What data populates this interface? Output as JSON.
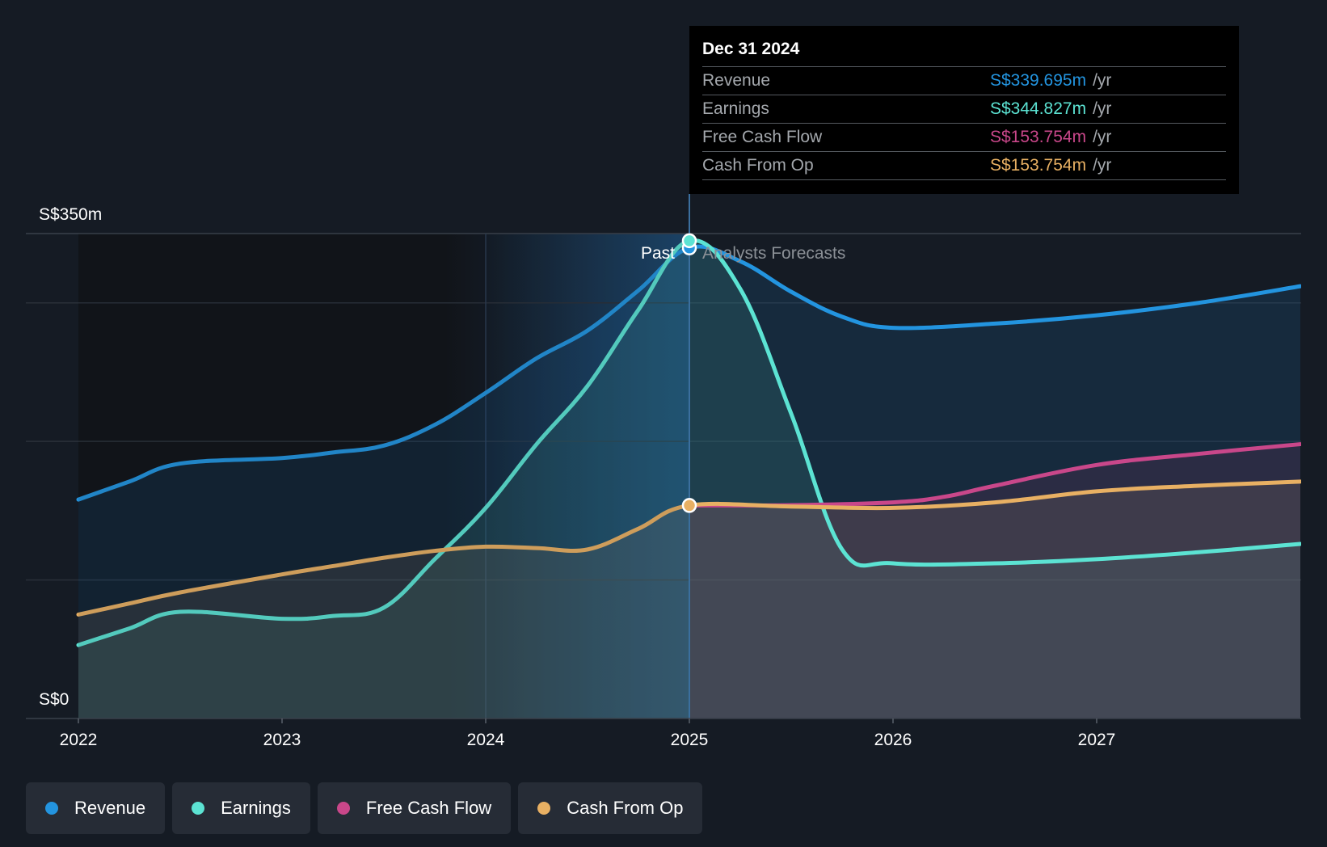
{
  "chart_data": {
    "type": "line",
    "x_label_ticks": [
      "2022",
      "2023",
      "2024",
      "2025",
      "2026",
      "2027"
    ],
    "y_axis": {
      "max_label": "S$350m",
      "min_label": "S$0",
      "ylim": [
        0,
        350
      ]
    },
    "grid": true,
    "past_label": "Past",
    "forecast_label": "Analysts Forecasts",
    "divider_x": 2025.0,
    "series": [
      {
        "name": "Revenue",
        "color": "#2394df",
        "x": [
          2022.0,
          2022.25,
          2022.5,
          2023.0,
          2023.25,
          2023.5,
          2023.75,
          2024.0,
          2024.25,
          2024.5,
          2024.75,
          2025.0,
          2025.25,
          2025.5,
          2025.75,
          2026.0,
          2026.5,
          2027.0,
          2027.5,
          2028.0
        ],
        "y": [
          158,
          171,
          184,
          188,
          192,
          197,
          212,
          235,
          260,
          280,
          309,
          339.695,
          330,
          308,
          290,
          282,
          285,
          291,
          300,
          312
        ]
      },
      {
        "name": "Earnings",
        "color": "#5ce3d3",
        "x": [
          2022.0,
          2022.25,
          2022.5,
          2023.0,
          2023.25,
          2023.5,
          2023.75,
          2024.0,
          2024.25,
          2024.5,
          2024.75,
          2025.0,
          2025.25,
          2025.5,
          2025.75,
          2026.0,
          2026.5,
          2027.0,
          2027.5,
          2028.0
        ],
        "y": [
          53,
          65,
          77,
          72,
          74,
          80,
          115,
          152,
          198,
          240,
          295,
          344.827,
          310,
          220,
          122,
          112,
          112,
          115,
          120,
          126
        ]
      },
      {
        "name": "Free Cash Flow",
        "color": "#c9478a",
        "x": [
          2025.0,
          2025.5,
          2026.0,
          2026.25,
          2026.5,
          2027.0,
          2027.5,
          2028.0
        ],
        "y": [
          153.754,
          154,
          156,
          160,
          168,
          183,
          191,
          198
        ]
      },
      {
        "name": "Cash From Op",
        "color": "#e8b063",
        "x": [
          2022.0,
          2022.25,
          2022.5,
          2023.0,
          2023.25,
          2023.5,
          2023.75,
          2024.0,
          2024.25,
          2024.5,
          2024.75,
          2025.0,
          2025.5,
          2026.0,
          2026.5,
          2027.0,
          2027.5,
          2028.0
        ],
        "y": [
          75,
          83,
          91,
          104,
          110,
          116,
          121,
          124,
          123,
          122,
          137,
          153.754,
          153,
          152,
          156,
          164,
          168,
          171
        ]
      }
    ]
  },
  "tooltip": {
    "date": "Dec 31 2024",
    "rows": [
      {
        "name": "Revenue",
        "value": "S$339.695m",
        "unit": "/yr",
        "color": "#2394df"
      },
      {
        "name": "Earnings",
        "value": "S$344.827m",
        "unit": "/yr",
        "color": "#5ce3d3"
      },
      {
        "name": "Free Cash Flow",
        "value": "S$153.754m",
        "unit": "/yr",
        "color": "#c9478a"
      },
      {
        "name": "Cash From Op",
        "value": "S$153.754m",
        "unit": "/yr",
        "color": "#e8b063"
      }
    ]
  },
  "legend": [
    {
      "label": "Revenue",
      "color": "#2394df"
    },
    {
      "label": "Earnings",
      "color": "#5ce3d3"
    },
    {
      "label": "Free Cash Flow",
      "color": "#c9478a"
    },
    {
      "label": "Cash From Op",
      "color": "#e8b063"
    }
  ]
}
